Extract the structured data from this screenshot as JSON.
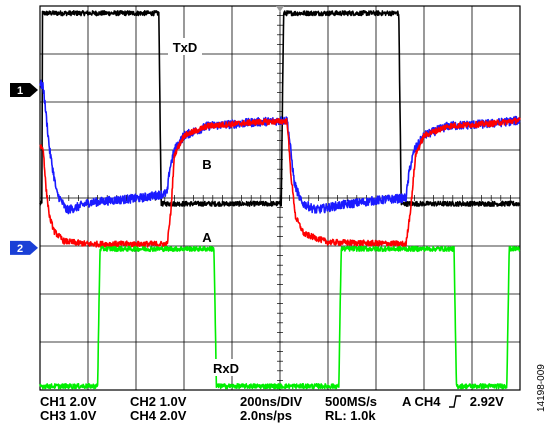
{
  "chart_data": {
    "type": "line",
    "xlabel": "",
    "ylabel": "",
    "x_unit": "ns",
    "time_per_div_ns": 200,
    "xlim": [
      0,
      2000
    ],
    "ylim_divisions": [
      -4,
      4
    ],
    "grid": true,
    "trace_labels": [
      {
        "id": "txd",
        "text": "TxD"
      },
      {
        "id": "b",
        "text": "B"
      },
      {
        "id": "a",
        "text": "A"
      },
      {
        "id": "rxd",
        "text": "RxD"
      }
    ],
    "channel_markers": [
      {
        "id": "ch1",
        "text": "1",
        "color": "#000000"
      },
      {
        "id": "ch2",
        "text": "2",
        "color": "#1a3fd6"
      }
    ],
    "series": [
      {
        "id": "txd",
        "color": "#000000",
        "noise": 0.05,
        "points": [
          [
            0,
            -0.12
          ],
          [
            8,
            -0.12
          ],
          [
            10,
            3.85
          ],
          [
            495,
            3.85
          ],
          [
            505,
            -0.12
          ],
          [
            1005,
            -0.12
          ],
          [
            1015,
            3.85
          ],
          [
            1495,
            3.85
          ],
          [
            1505,
            -0.12
          ],
          [
            2000,
            -0.12
          ]
        ]
      },
      {
        "id": "b",
        "color": "#1a1aff",
        "noise": 0.09,
        "points": [
          [
            0,
            2.4
          ],
          [
            14,
            2.3
          ],
          [
            40,
            1.0
          ],
          [
            70,
            0.1
          ],
          [
            110,
            -0.25
          ],
          [
            150,
            -0.2
          ],
          [
            200,
            -0.1
          ],
          [
            300,
            -0.05
          ],
          [
            420,
            0
          ],
          [
            530,
            0.1
          ],
          [
            540,
            0.6
          ],
          [
            560,
            1.0
          ],
          [
            600,
            1.3
          ],
          [
            700,
            1.5
          ],
          [
            900,
            1.58
          ],
          [
            1030,
            1.62
          ],
          [
            1040,
            1.2
          ],
          [
            1060,
            0.3
          ],
          [
            1090,
            -0.1
          ],
          [
            1150,
            -0.25
          ],
          [
            1250,
            -0.15
          ],
          [
            1400,
            -0.05
          ],
          [
            1525,
            0
          ],
          [
            1540,
            0.6
          ],
          [
            1560,
            1.0
          ],
          [
            1600,
            1.3
          ],
          [
            1700,
            1.5
          ],
          [
            1880,
            1.55
          ],
          [
            2000,
            1.62
          ]
        ]
      },
      {
        "id": "a",
        "color": "#ff0000",
        "noise": 0.06,
        "points": [
          [
            0,
            1.1
          ],
          [
            14,
            1.0
          ],
          [
            25,
            0.2
          ],
          [
            40,
            -0.4
          ],
          [
            60,
            -0.7
          ],
          [
            100,
            -0.9
          ],
          [
            200,
            -0.96
          ],
          [
            530,
            -0.96
          ],
          [
            545,
            -0.3
          ],
          [
            560,
            0.9
          ],
          [
            600,
            1.3
          ],
          [
            700,
            1.5
          ],
          [
            900,
            1.58
          ],
          [
            1030,
            1.6
          ],
          [
            1045,
            0.5
          ],
          [
            1065,
            -0.4
          ],
          [
            1100,
            -0.75
          ],
          [
            1200,
            -0.92
          ],
          [
            1525,
            -0.96
          ],
          [
            1545,
            -0.2
          ],
          [
            1565,
            0.9
          ],
          [
            1600,
            1.3
          ],
          [
            1700,
            1.5
          ],
          [
            1880,
            1.55
          ],
          [
            2000,
            1.62
          ]
        ]
      },
      {
        "id": "rxd",
        "color": "#00ee00",
        "noise": 0.05,
        "points": [
          [
            0,
            -3.92
          ],
          [
            240,
            -3.92
          ],
          [
            250,
            -1.06
          ],
          [
            725,
            -1.06
          ],
          [
            735,
            -3.92
          ],
          [
            1245,
            -3.92
          ],
          [
            1255,
            -1.06
          ],
          [
            1725,
            -1.06
          ],
          [
            1735,
            -3.92
          ],
          [
            1945,
            -3.92
          ],
          [
            1955,
            -1.06
          ],
          [
            2000,
            -1.06
          ]
        ]
      }
    ]
  },
  "settings": {
    "ch1": "CH1  2.0V",
    "ch3": "CH3  1.0V",
    "ch2": "CH2  1.0V",
    "ch4": "CH4  2.0V",
    "timebase": "200ns/DIV",
    "resolution": "2.0ns/ps",
    "sample_rate": "500MS/s",
    "load": "RL: 1.0k",
    "trigger_prefix": "A  CH4",
    "trigger_level": "2.92V"
  },
  "figure_id": "14198-009"
}
